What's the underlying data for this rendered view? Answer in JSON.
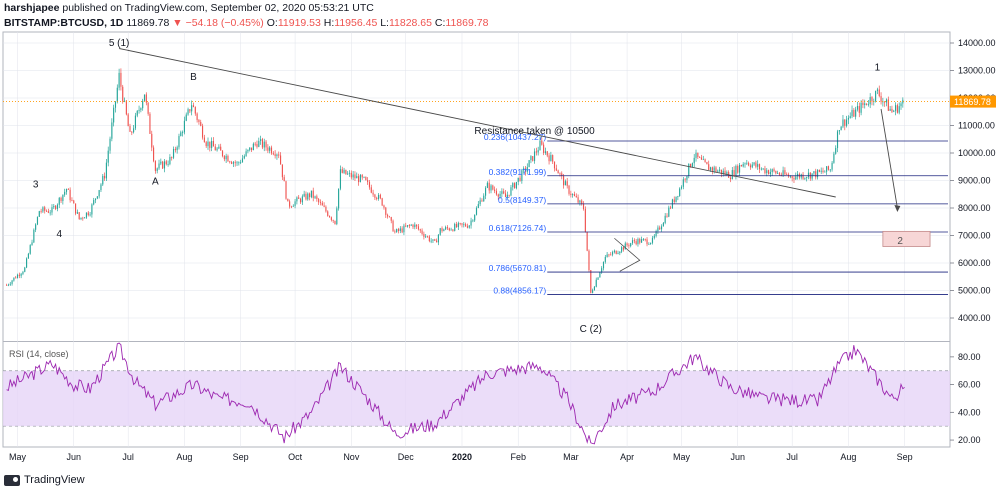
{
  "header": {
    "author": "harshjapee",
    "published": "published on TradingView.com, September 02, 2020 05:53:21 UTC",
    "symbol": "BITSTAMP:BTCUSD, 1D",
    "last": "11869.78",
    "change": "−54.18 (−0.45%)",
    "o_label": "O:",
    "o_value": "11919.53",
    "h_label": "H:",
    "h_value": "11956.45",
    "l_label": "L:",
    "l_value": "11828.65",
    "c_label": "C:",
    "c_value": "11869.78"
  },
  "footer": {
    "brand": "TradingView"
  },
  "colors": {
    "up": "#26a69a",
    "down": "#ef5350",
    "fib": "#2962ff",
    "rsi": "#9c27b0",
    "rsi_band": "#e6d5f7",
    "grid": "#e0e3eb",
    "price_tag": "#ff9800"
  },
  "chart_data": [
    {
      "type": "candlestick",
      "symbol": "BITSTAMP:BTCUSD",
      "interval": "1D",
      "y_axis_ticks": [
        "14000.00",
        "13000.00",
        "12000.00",
        "11000.00",
        "10000.00",
        "9000.00",
        "8000.00",
        "7000.00",
        "6000.00",
        "5000.00",
        "4000.00"
      ],
      "ylim": [
        3200,
        14400
      ],
      "x_axis_ticks": [
        "May",
        "Jun",
        "Jul",
        "Aug",
        "Sep",
        "Oct",
        "Nov",
        "Dec",
        "2020",
        "Feb",
        "Mar",
        "Apr",
        "May",
        "Jun",
        "Jul",
        "Aug",
        "Sep"
      ],
      "last_price_label": "11869.78",
      "close_path": [
        {
          "d": "2019-04-25",
          "v": 5200
        },
        {
          "d": "2019-05-05",
          "v": 5800
        },
        {
          "d": "2019-05-13",
          "v": 7900
        },
        {
          "d": "2019-05-20",
          "v": 7900
        },
        {
          "d": "2019-05-28",
          "v": 8700
        },
        {
          "d": "2019-06-04",
          "v": 7600
        },
        {
          "d": "2019-06-10",
          "v": 7900
        },
        {
          "d": "2019-06-18",
          "v": 9200
        },
        {
          "d": "2019-06-26",
          "v": 12800
        },
        {
          "d": "2019-07-02",
          "v": 10600
        },
        {
          "d": "2019-07-10",
          "v": 12200
        },
        {
          "d": "2019-07-16",
          "v": 9400
        },
        {
          "d": "2019-07-25",
          "v": 9800
        },
        {
          "d": "2019-08-05",
          "v": 11800
        },
        {
          "d": "2019-08-13",
          "v": 10400
        },
        {
          "d": "2019-08-30",
          "v": 9600
        },
        {
          "d": "2019-09-10",
          "v": 10400
        },
        {
          "d": "2019-09-22",
          "v": 10000
        },
        {
          "d": "2019-09-27",
          "v": 8100
        },
        {
          "d": "2019-10-10",
          "v": 8500
        },
        {
          "d": "2019-10-23",
          "v": 7500
        },
        {
          "d": "2019-10-26",
          "v": 9300
        },
        {
          "d": "2019-11-08",
          "v": 9000
        },
        {
          "d": "2019-11-18",
          "v": 8200
        },
        {
          "d": "2019-11-25",
          "v": 7100
        },
        {
          "d": "2019-12-05",
          "v": 7400
        },
        {
          "d": "2019-12-17",
          "v": 6700
        },
        {
          "d": "2019-12-20",
          "v": 7200
        },
        {
          "d": "2020-01-05",
          "v": 7400
        },
        {
          "d": "2020-01-15",
          "v": 8800
        },
        {
          "d": "2020-01-25",
          "v": 8400
        },
        {
          "d": "2020-02-05",
          "v": 9400
        },
        {
          "d": "2020-02-13",
          "v": 10300
        },
        {
          "d": "2020-02-20",
          "v": 9700
        },
        {
          "d": "2020-02-28",
          "v": 8700
        },
        {
          "d": "2020-03-08",
          "v": 8000
        },
        {
          "d": "2020-03-12",
          "v": 4900
        },
        {
          "d": "2020-03-20",
          "v": 6200
        },
        {
          "d": "2020-04-05",
          "v": 6800
        },
        {
          "d": "2020-04-15",
          "v": 6800
        },
        {
          "d": "2020-04-30",
          "v": 8700
        },
        {
          "d": "2020-05-08",
          "v": 9900
        },
        {
          "d": "2020-05-15",
          "v": 9500
        },
        {
          "d": "2020-05-28",
          "v": 9200
        },
        {
          "d": "2020-06-05",
          "v": 9700
        },
        {
          "d": "2020-06-15",
          "v": 9400
        },
        {
          "d": "2020-06-30",
          "v": 9150
        },
        {
          "d": "2020-07-15",
          "v": 9250
        },
        {
          "d": "2020-07-22",
          "v": 9400
        },
        {
          "d": "2020-07-27",
          "v": 11000
        },
        {
          "d": "2020-08-05",
          "v": 11500
        },
        {
          "d": "2020-08-17",
          "v": 12200
        },
        {
          "d": "2020-08-25",
          "v": 11500
        },
        {
          "d": "2020-09-01",
          "v": 11870
        }
      ],
      "fibonacci_levels": [
        {
          "label": "0.236(10437.27)",
          "ratio": 0.236,
          "value": 10437.27
        },
        {
          "label": "0.382(9171.99)",
          "ratio": 0.382,
          "value": 9171.99
        },
        {
          "label": "0.5(8149.37)",
          "ratio": 0.5,
          "value": 8149.37
        },
        {
          "label": "0.618(7126.74)",
          "ratio": 0.618,
          "value": 7126.74
        },
        {
          "label": "0.786(5670.81)",
          "ratio": 0.786,
          "value": 5670.81
        },
        {
          "label": "0.88(4856.17)",
          "ratio": 0.88,
          "value": 4856.17
        }
      ],
      "annotations": [
        {
          "text": "5 (1)",
          "d": "2019-06-26",
          "v": 13900
        },
        {
          "text": "B",
          "d": "2019-08-06",
          "v": 12650
        },
        {
          "text": "A",
          "d": "2019-07-16",
          "v": 8850
        },
        {
          "text": "3",
          "d": "2019-05-11",
          "v": 8750
        },
        {
          "text": "4",
          "d": "2019-05-24",
          "v": 6950
        },
        {
          "text": "C (2)",
          "d": "2020-03-12",
          "v": 3500
        },
        {
          "text": "1",
          "d": "2020-08-17",
          "v": 13000
        },
        {
          "text": "Resistance taken @ 10500",
          "d": "2020-02-10",
          "v": 10700
        },
        {
          "text": "2",
          "d": "2020-08-28",
          "v": 6700
        }
      ],
      "trendline": {
        "from": {
          "d": "2019-06-26",
          "v": 13800
        },
        "to": {
          "d": "2020-07-25",
          "v": 8400
        }
      }
    },
    {
      "type": "line",
      "title": "RSI (14, close)",
      "y_axis_ticks": [
        "80.00",
        "60.00",
        "40.00",
        "20.00"
      ],
      "ylim": [
        15,
        90
      ],
      "band": [
        30,
        70
      ],
      "x": [
        "2019-04-25",
        "2019-05-20",
        "2019-06-01",
        "2019-06-10",
        "2019-06-26",
        "2019-07-05",
        "2019-07-16",
        "2019-08-06",
        "2019-08-20",
        "2019-09-05",
        "2019-09-25",
        "2019-10-10",
        "2019-10-26",
        "2019-11-10",
        "2019-11-25",
        "2019-12-17",
        "2020-01-15",
        "2020-02-13",
        "2020-02-28",
        "2020-03-12",
        "2020-03-25",
        "2020-04-15",
        "2020-05-08",
        "2020-05-28",
        "2020-06-15",
        "2020-07-15",
        "2020-07-27",
        "2020-08-05",
        "2020-08-25",
        "2020-09-01"
      ],
      "values": [
        58,
        75,
        60,
        57,
        87,
        62,
        46,
        60,
        50,
        48,
        22,
        40,
        73,
        50,
        25,
        32,
        68,
        74,
        50,
        16,
        45,
        55,
        80,
        58,
        50,
        48,
        75,
        85,
        50,
        58
      ]
    }
  ]
}
